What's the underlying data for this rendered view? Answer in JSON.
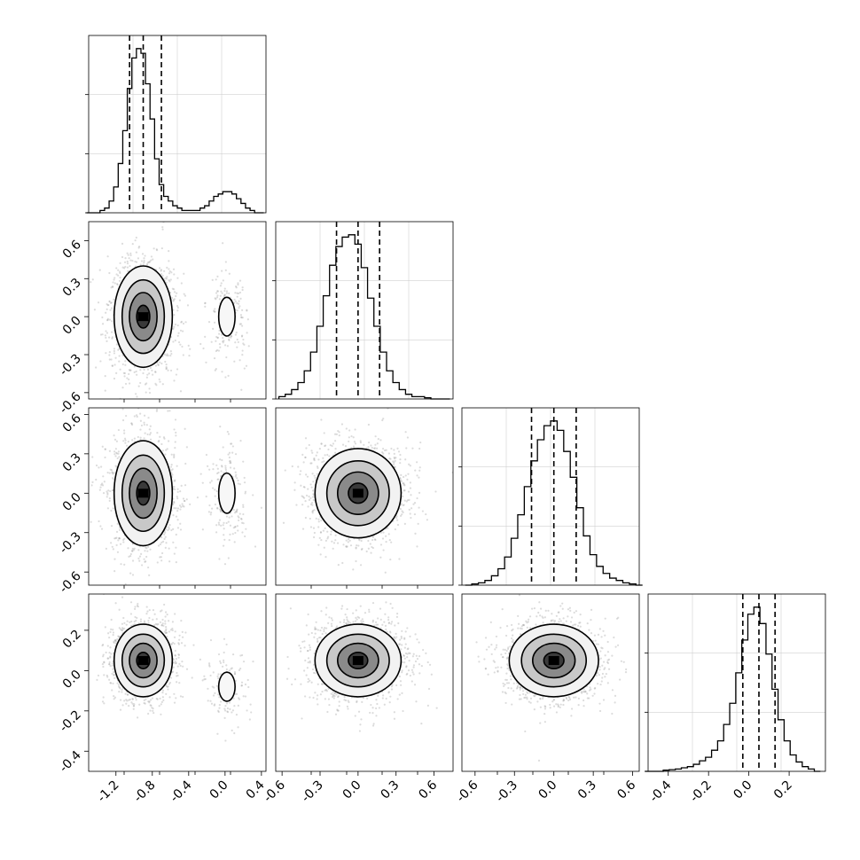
{
  "chart_data": [
    {
      "type": "histogram",
      "panel": "param-1-marginal",
      "x": [
        -1.5,
        -1.45,
        -1.4,
        -1.35,
        -1.3,
        -1.25,
        -1.2,
        -1.15,
        -1.1,
        -1.05,
        -1.0,
        -0.95,
        -0.9,
        -0.85,
        -0.8,
        -0.75,
        -0.7,
        -0.65,
        -0.6,
        -0.55,
        -0.5,
        -0.45,
        -0.4,
        -0.35,
        -0.3,
        -0.25,
        -0.2,
        -0.15,
        -0.1,
        -0.05,
        0.0,
        0.05,
        0.1,
        0.15,
        0.2,
        0.25,
        0.3,
        0.35,
        0.4
      ],
      "values": [
        0,
        0,
        0,
        0.01,
        0.02,
        0.05,
        0.11,
        0.21,
        0.35,
        0.53,
        0.66,
        0.7,
        0.68,
        0.55,
        0.4,
        0.23,
        0.12,
        0.07,
        0.05,
        0.03,
        0.02,
        0.01,
        0.01,
        0.01,
        0.01,
        0.02,
        0.03,
        0.05,
        0.07,
        0.08,
        0.09,
        0.09,
        0.08,
        0.06,
        0.04,
        0.02,
        0.01,
        0,
        0
      ],
      "quantiles": [
        -1.05,
        -0.9,
        -0.7
      ],
      "xlim": [
        -1.5,
        0.45
      ],
      "ytick_labels": [
        "",
        ""
      ],
      "grid": true
    },
    {
      "type": "histogram",
      "panel": "param-2-marginal",
      "x": [
        -0.6,
        -0.55,
        -0.5,
        -0.45,
        -0.4,
        -0.35,
        -0.3,
        -0.25,
        -0.2,
        -0.15,
        -0.1,
        -0.05,
        0.0,
        0.05,
        0.1,
        0.15,
        0.2,
        0.25,
        0.3,
        0.35,
        0.4,
        0.45,
        0.5,
        0.55,
        0.6,
        0.65,
        0.7
      ],
      "values": [
        0.01,
        0.02,
        0.04,
        0.07,
        0.12,
        0.2,
        0.31,
        0.44,
        0.57,
        0.65,
        0.69,
        0.7,
        0.66,
        0.56,
        0.43,
        0.31,
        0.2,
        0.12,
        0.07,
        0.04,
        0.02,
        0.01,
        0.01,
        0.005,
        0,
        0,
        0
      ],
      "quantiles": [
        -0.17,
        0.0,
        0.17
      ],
      "xlim": [
        -0.65,
        0.75
      ],
      "grid": true
    },
    {
      "type": "histogram",
      "panel": "param-3-marginal",
      "x": [
        -0.65,
        -0.6,
        -0.55,
        -0.5,
        -0.45,
        -0.4,
        -0.35,
        -0.3,
        -0.25,
        -0.2,
        -0.15,
        -0.1,
        -0.05,
        0.0,
        0.05,
        0.1,
        0.15,
        0.2,
        0.25,
        0.3,
        0.35,
        0.4,
        0.45,
        0.5,
        0.55,
        0.6,
        0.65
      ],
      "values": [
        0,
        0.005,
        0.01,
        0.02,
        0.04,
        0.07,
        0.12,
        0.2,
        0.3,
        0.42,
        0.53,
        0.62,
        0.68,
        0.7,
        0.66,
        0.57,
        0.46,
        0.33,
        0.21,
        0.13,
        0.08,
        0.05,
        0.03,
        0.02,
        0.01,
        0.005,
        0
      ],
      "quantiles": [
        -0.17,
        0.0,
        0.17
      ],
      "xlim": [
        -0.7,
        0.65
      ],
      "grid": true
    },
    {
      "type": "histogram",
      "panel": "param-4-marginal",
      "x": [
        -0.5,
        -0.47,
        -0.44,
        -0.41,
        -0.38,
        -0.35,
        -0.32,
        -0.29,
        -0.26,
        -0.23,
        -0.2,
        -0.17,
        -0.14,
        -0.11,
        -0.08,
        -0.05,
        -0.02,
        0.01,
        0.04,
        0.07,
        0.1,
        0.13,
        0.16,
        0.19,
        0.22,
        0.25,
        0.28,
        0.31,
        0.34
      ],
      "values": [
        0,
        0,
        0,
        0.005,
        0.007,
        0.01,
        0.015,
        0.02,
        0.03,
        0.045,
        0.06,
        0.09,
        0.13,
        0.2,
        0.29,
        0.42,
        0.56,
        0.67,
        0.7,
        0.63,
        0.5,
        0.35,
        0.22,
        0.13,
        0.07,
        0.04,
        0.02,
        0.01,
        0
      ],
      "quantiles": [
        -0.03,
        0.05,
        0.13
      ],
      "xlim": [
        -0.5,
        0.38
      ],
      "grid": true
    },
    {
      "type": "contour-2d",
      "panel": "param-1-vs-param-2",
      "modes": [
        {
          "center": [
            -0.9,
            0.0
          ],
          "spread": [
            0.16,
            0.2
          ],
          "weight": 1.0
        },
        {
          "center": [
            0.02,
            0.0
          ],
          "spread": [
            0.1,
            0.17
          ],
          "weight": 0.13
        }
      ],
      "xlim": [
        -1.5,
        0.45
      ],
      "ylim": [
        -0.65,
        0.75
      ],
      "ytick_labels": [
        "-0.6",
        "-0.3",
        "0.0",
        "0.3",
        "0.6"
      ]
    },
    {
      "type": "contour-2d",
      "panel": "param-1-vs-param-3",
      "modes": [
        {
          "center": [
            -0.9,
            0.0
          ],
          "spread": [
            0.16,
            0.2
          ],
          "weight": 1.0
        },
        {
          "center": [
            0.02,
            0.0
          ],
          "spread": [
            0.1,
            0.17
          ],
          "weight": 0.13
        }
      ],
      "xlim": [
        -1.5,
        0.45
      ],
      "ylim": [
        -0.7,
        0.65
      ],
      "ytick_labels": [
        "-0.6",
        "-0.3",
        "0.0",
        "0.3",
        "0.6"
      ]
    },
    {
      "type": "contour-2d",
      "panel": "param-2-vs-param-3",
      "modes": [
        {
          "center": [
            0.0,
            0.0
          ],
          "spread": [
            0.17,
            0.17
          ],
          "weight": 1.0
        }
      ],
      "xlim": [
        -0.65,
        0.75
      ],
      "ylim": [
        -0.7,
        0.65
      ]
    },
    {
      "type": "contour-2d",
      "panel": "param-1-vs-param-4",
      "modes": [
        {
          "center": [
            -0.9,
            0.05
          ],
          "spread": [
            0.16,
            0.09
          ],
          "weight": 1.0
        },
        {
          "center": [
            0.02,
            -0.08
          ],
          "spread": [
            0.1,
            0.08
          ],
          "weight": 0.13
        }
      ],
      "xlim": [
        -1.5,
        0.45
      ],
      "ylim": [
        -0.5,
        0.38
      ],
      "xtick_labels": [
        "-1.2",
        "-0.8",
        "-0.4",
        "0.0",
        "0.4"
      ],
      "ytick_labels": [
        "-0.4",
        "-0.2",
        "0.0",
        "0.2"
      ]
    },
    {
      "type": "contour-2d",
      "panel": "param-2-vs-param-4",
      "modes": [
        {
          "center": [
            0.0,
            0.05
          ],
          "spread": [
            0.17,
            0.09
          ],
          "weight": 1.0
        }
      ],
      "xlim": [
        -0.65,
        0.75
      ],
      "ylim": [
        -0.5,
        0.38
      ],
      "xtick_labels": [
        "-0.6",
        "-0.3",
        "0.0",
        "0.3",
        "0.6"
      ]
    },
    {
      "type": "contour-2d",
      "panel": "param-3-vs-param-4",
      "modes": [
        {
          "center": [
            0.0,
            0.05
          ],
          "spread": [
            0.17,
            0.09
          ],
          "weight": 1.0
        }
      ],
      "xlim": [
        -0.7,
        0.65
      ],
      "ylim": [
        -0.5,
        0.38
      ],
      "xtick_labels": [
        "-0.6",
        "-0.3",
        "0.0",
        "0.3",
        "0.6"
      ]
    },
    {
      "type": "axis",
      "panel": "param-4-bottom-axis",
      "xtick_labels": [
        "-0.4",
        "-0.2",
        "0.0",
        "0.2"
      ]
    }
  ]
}
